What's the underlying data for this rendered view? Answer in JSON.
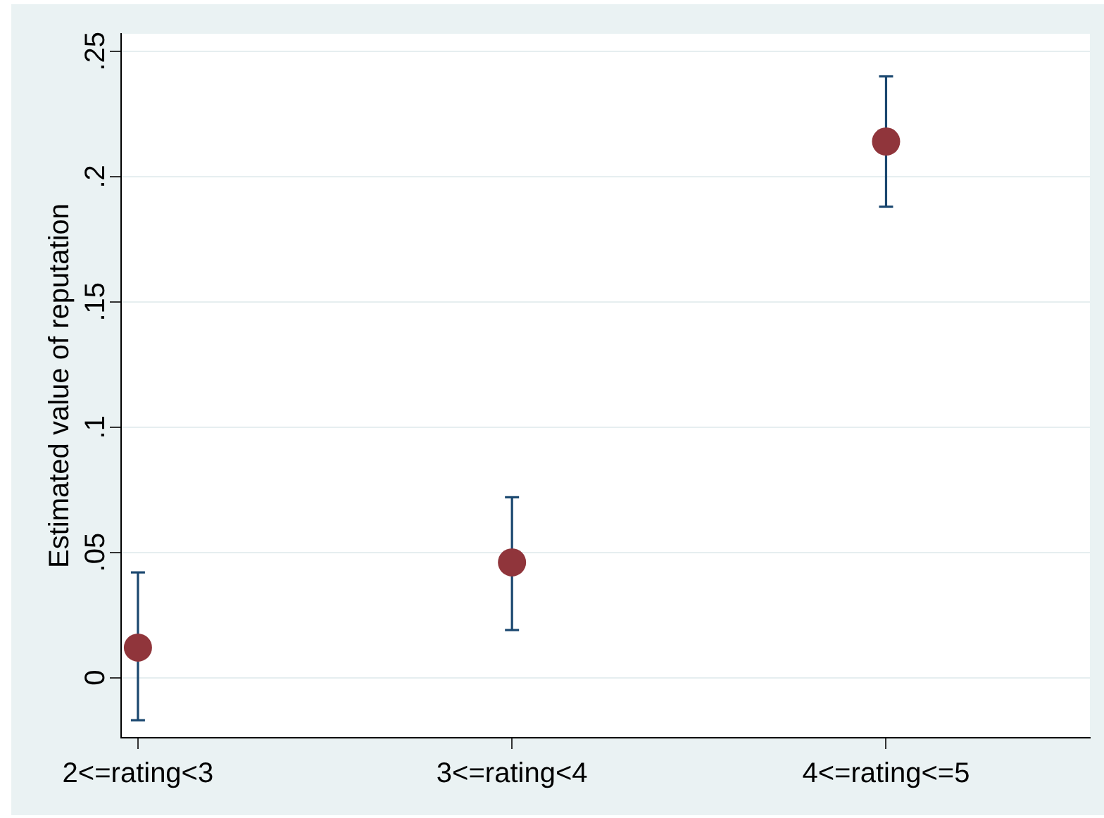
{
  "chart_data": {
    "type": "scatter",
    "ylabel": "Estimated value of reputation",
    "categories": [
      "2<=rating<3",
      "3<=rating<4",
      "4<=rating<=5"
    ],
    "values": [
      0.012,
      0.046,
      0.214
    ],
    "color": "#90353b",
    "errors": [
      [
        -0.017,
        0.042
      ],
      [
        0.019,
        0.072
      ],
      [
        0.188,
        0.24
      ]
    ],
    "ylim": [
      -0.024,
      0.257
    ],
    "yticks": [
      0,
      {
        "value": 0.05,
        "label": ".05"
      },
      {
        "value": 0.1,
        "label": ".1"
      },
      {
        "value": 0.15,
        "label": ".15"
      },
      {
        "value": 0.2,
        "label": ".2"
      },
      {
        "value": 0.25,
        "label": ".25"
      }
    ],
    "grid": "y",
    "marker": "circle"
  }
}
